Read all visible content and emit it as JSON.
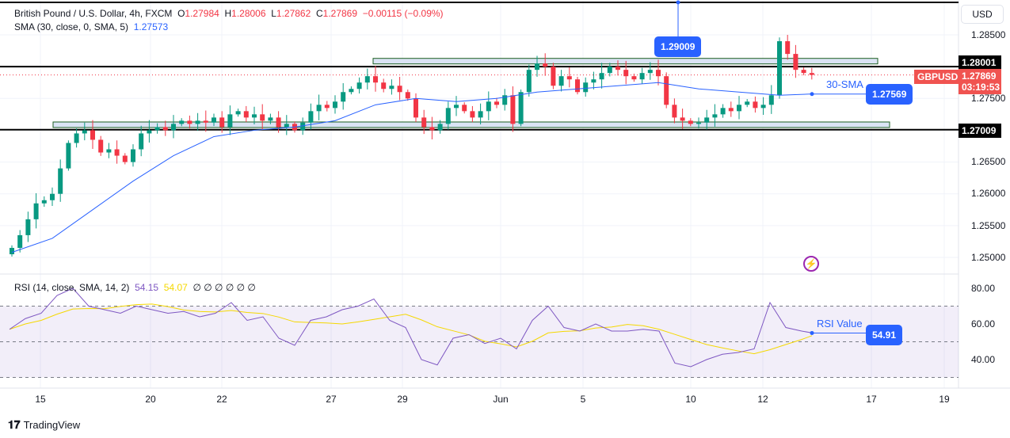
{
  "header": {
    "title": "British Pound / U.S. Dollar, 4h, FXCM",
    "o_label": "O",
    "o": "1.27984",
    "h_label": "H",
    "h": "1.28006",
    "l_label": "L",
    "l": "1.27862",
    "c_label": "C",
    "c": "1.27869",
    "change": "−0.00115 (−0.09%)",
    "sma_label": "SMA (30, close, 0, SMA, 5)",
    "sma_value": "1.27573"
  },
  "rsi_legend": {
    "label": "RSI (14, close, SMA, 14, 2)",
    "rsi": "54.15",
    "rsi_ma": "54.07",
    "extras": "∅  ∅  ∅  ∅  ∅  ∅"
  },
  "price_axis": {
    "currency": "USD",
    "ticks": [
      "1.28500",
      "1.27500",
      "1.27000",
      "1.26500",
      "1.26000",
      "1.25500",
      "1.25000"
    ],
    "resistance": "1.28001",
    "support": "1.27009",
    "symbol": "GBPUSD",
    "last": "1.27869",
    "countdown": "03:19:53"
  },
  "rsi_axis": {
    "ticks": [
      "80.00",
      "60.00",
      "40.00"
    ]
  },
  "annotations": {
    "high": "1.29009",
    "sma_text": "30-SMA",
    "sma_value": "1.27569",
    "rsi_text": "RSI Value",
    "rsi_value": "54.91"
  },
  "time_axis": [
    "15",
    "20",
    "22",
    "27",
    "29",
    "Jun",
    "5",
    "10",
    "12",
    "17",
    "19"
  ],
  "brand": "TradingView",
  "colors": {
    "up": "#089981",
    "down": "#f23645",
    "sma": "#2962ff",
    "rsi": "#7e57c2",
    "rsi_ma": "#f5d800"
  },
  "chart_data": {
    "type": "candlestick",
    "closes": [
      1.2515,
      1.2535,
      1.256,
      1.2585,
      1.259,
      1.26,
      1.264,
      1.268,
      1.2695,
      1.27,
      1.2685,
      1.2665,
      1.267,
      1.266,
      1.265,
      1.267,
      1.2695,
      1.27,
      1.2705,
      1.27,
      1.271,
      1.2715,
      1.271,
      1.2715,
      1.2712,
      1.272,
      1.2705,
      1.2725,
      1.273,
      1.272,
      1.2725,
      1.2715,
      1.272,
      1.2705,
      1.271,
      1.27,
      1.2712,
      1.273,
      1.274,
      1.2735,
      1.2745,
      1.276,
      1.2765,
      1.2775,
      1.2785,
      1.2775,
      1.2765,
      1.277,
      1.276,
      1.275,
      1.272,
      1.2705,
      1.27,
      1.271,
      1.2735,
      1.274,
      1.273,
      1.272,
      1.273,
      1.2745,
      1.274,
      1.2755,
      1.271,
      1.276,
      1.2795,
      1.2805,
      1.28,
      1.277,
      1.2785,
      1.278,
      1.276,
      1.2775,
      1.278,
      1.279,
      1.28,
      1.2795,
      1.2785,
      1.278,
      1.279,
      1.2795,
      1.2785,
      1.274,
      1.272,
      1.2715,
      1.271,
      1.2712,
      1.272,
      1.2725,
      1.2735,
      1.273,
      1.274,
      1.2745,
      1.2735,
      1.274,
      1.2755,
      1.284,
      1.282,
      1.2795,
      1.279,
      1.2787
    ],
    "sma_every5": [
      1.2508,
      1.253,
      1.2575,
      1.262,
      1.266,
      1.269,
      1.27,
      1.2705,
      1.2715,
      1.274,
      1.275,
      1.2745,
      1.275,
      1.276,
      1.2765,
      1.277,
      1.2775,
      1.2765,
      1.276,
      1.2755,
      1.2757
    ],
    "rsi_every2": [
      57,
      63,
      66,
      76,
      80,
      70,
      68,
      66,
      70,
      68,
      66,
      67,
      64,
      66,
      72,
      62,
      64,
      52,
      48,
      62,
      64,
      68,
      70,
      74,
      62,
      58,
      40,
      37,
      52,
      54,
      49,
      52,
      46,
      62,
      70,
      58,
      56,
      60,
      56,
      56,
      57,
      56,
      38,
      36,
      40,
      43,
      44,
      46,
      72,
      58,
      56,
      55
    ],
    "price_range": [
      1.249,
      1.2905
    ],
    "rsi_range": [
      25,
      85
    ],
    "rsi_bands": [
      70,
      50,
      30
    ]
  }
}
